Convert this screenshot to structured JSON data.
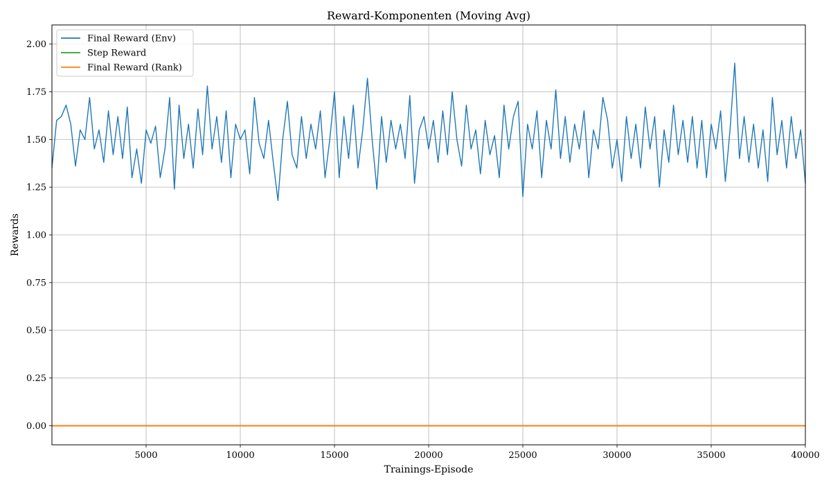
{
  "chart_data": {
    "type": "line",
    "title": "Reward-Komponenten (Moving Avg)",
    "xlabel": "Trainings-Episode",
    "ylabel": "Rewards",
    "xlim": [
      0,
      40000
    ],
    "ylim": [
      -0.1,
      2.1
    ],
    "xticks": [
      5000,
      10000,
      15000,
      20000,
      25000,
      30000,
      35000,
      40000
    ],
    "yticks": [
      0.0,
      0.25,
      0.5,
      0.75,
      1.0,
      1.25,
      1.5,
      1.75,
      2.0
    ],
    "xtick_labels": [
      "5000",
      "10000",
      "15000",
      "20000",
      "25000",
      "30000",
      "35000",
      "40000"
    ],
    "ytick_labels": [
      "0.00",
      "0.25",
      "0.50",
      "0.75",
      "1.00",
      "1.25",
      "1.50",
      "1.75",
      "2.00"
    ],
    "grid": true,
    "legend_position": "top-left",
    "series": [
      {
        "name": "Final Reward (Env)",
        "color": "#1f77b4",
        "x": [
          0,
          250,
          500,
          750,
          1000,
          1250,
          1500,
          1750,
          2000,
          2250,
          2500,
          2750,
          3000,
          3250,
          3500,
          3750,
          4000,
          4250,
          4500,
          4750,
          5000,
          5250,
          5500,
          5750,
          6000,
          6250,
          6500,
          6750,
          7000,
          7250,
          7500,
          7750,
          8000,
          8250,
          8500,
          8750,
          9000,
          9250,
          9500,
          9750,
          10000,
          10250,
          10500,
          10750,
          11000,
          11250,
          11500,
          11750,
          12000,
          12250,
          12500,
          12750,
          13000,
          13250,
          13500,
          13750,
          14000,
          14250,
          14500,
          14750,
          15000,
          15250,
          15500,
          15750,
          16000,
          16250,
          16500,
          16750,
          17000,
          17250,
          17500,
          17750,
          18000,
          18250,
          18500,
          18750,
          19000,
          19250,
          19500,
          19750,
          20000,
          20250,
          20500,
          20750,
          21000,
          21250,
          21500,
          21750,
          22000,
          22250,
          22500,
          22750,
          23000,
          23250,
          23500,
          23750,
          24000,
          24250,
          24500,
          24750,
          25000,
          25250,
          25500,
          25750,
          26000,
          26250,
          26500,
          26750,
          27000,
          27250,
          27500,
          27750,
          28000,
          28250,
          28500,
          28750,
          29000,
          29250,
          29500,
          29750,
          30000,
          30250,
          30500,
          30750,
          31000,
          31250,
          31500,
          31750,
          32000,
          32250,
          32500,
          32750,
          33000,
          33250,
          33500,
          33750,
          34000,
          34250,
          34500,
          34750,
          35000,
          35250,
          35500,
          35750,
          36000,
          36250,
          36500,
          36750,
          37000,
          37250,
          37500,
          37750,
          38000,
          38250,
          38500,
          38750,
          39000,
          39250,
          39500,
          39750,
          40000
        ],
        "values": [
          1.35,
          1.6,
          1.62,
          1.68,
          1.58,
          1.36,
          1.55,
          1.5,
          1.72,
          1.45,
          1.55,
          1.38,
          1.65,
          1.42,
          1.62,
          1.4,
          1.67,
          1.3,
          1.45,
          1.27,
          1.55,
          1.48,
          1.57,
          1.3,
          1.45,
          1.72,
          1.24,
          1.68,
          1.4,
          1.58,
          1.35,
          1.66,
          1.42,
          1.78,
          1.45,
          1.62,
          1.38,
          1.65,
          1.3,
          1.58,
          1.5,
          1.55,
          1.32,
          1.72,
          1.48,
          1.4,
          1.6,
          1.38,
          1.18,
          1.5,
          1.7,
          1.42,
          1.35,
          1.62,
          1.4,
          1.58,
          1.45,
          1.65,
          1.3,
          1.5,
          1.75,
          1.3,
          1.62,
          1.4,
          1.68,
          1.35,
          1.55,
          1.82,
          1.5,
          1.24,
          1.62,
          1.38,
          1.6,
          1.45,
          1.58,
          1.4,
          1.73,
          1.27,
          1.55,
          1.62,
          1.45,
          1.6,
          1.38,
          1.65,
          1.42,
          1.75,
          1.5,
          1.36,
          1.68,
          1.45,
          1.55,
          1.32,
          1.6,
          1.42,
          1.52,
          1.3,
          1.68,
          1.45,
          1.62,
          1.7,
          1.2,
          1.58,
          1.45,
          1.65,
          1.3,
          1.6,
          1.45,
          1.76,
          1.4,
          1.62,
          1.38,
          1.58,
          1.45,
          1.65,
          1.3,
          1.55,
          1.45,
          1.72,
          1.6,
          1.35,
          1.5,
          1.28,
          1.62,
          1.4,
          1.58,
          1.35,
          1.67,
          1.45,
          1.62,
          1.25,
          1.55,
          1.38,
          1.68,
          1.42,
          1.6,
          1.38,
          1.62,
          1.35,
          1.6,
          1.3,
          1.58,
          1.45,
          1.65,
          1.28,
          1.55,
          1.9,
          1.4,
          1.62,
          1.38,
          1.58,
          1.35,
          1.55,
          1.28,
          1.72,
          1.42,
          1.6,
          1.35,
          1.62,
          1.4,
          1.55,
          1.27
        ]
      },
      {
        "name": "Step Reward",
        "color": "#2ca02c",
        "x": [
          0,
          40000
        ],
        "values": [
          0.0,
          0.0
        ]
      },
      {
        "name": "Final Reward (Rank)",
        "color": "#ff7f0e",
        "x": [
          0,
          40000
        ],
        "values": [
          0.0,
          0.0
        ]
      }
    ]
  }
}
